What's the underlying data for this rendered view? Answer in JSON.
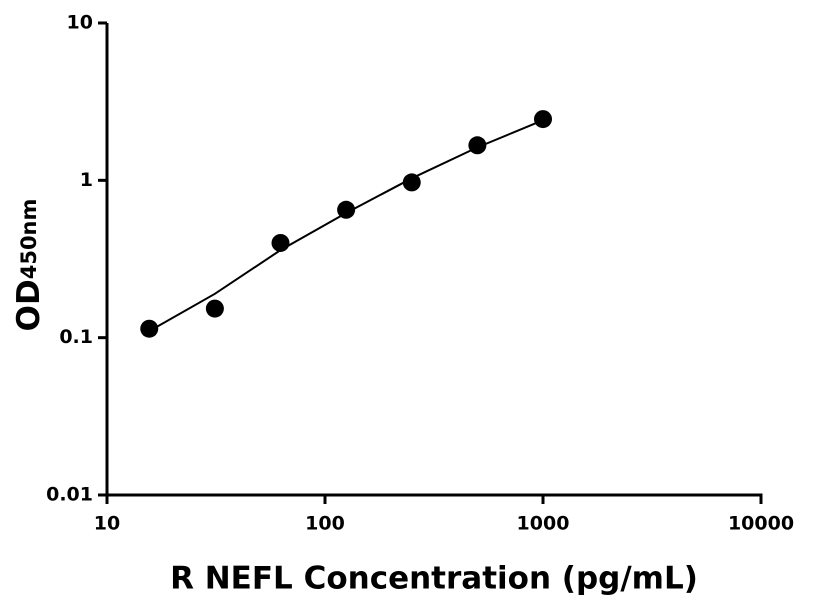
{
  "chart_data": {
    "type": "scatter",
    "xlabel": "R NEFL Concentration (pg/mL)",
    "ylabel": "OD",
    "ylabel_sub": "450nm",
    "xscale": "log",
    "yscale": "log",
    "xlim": [
      10,
      10000
    ],
    "ylim": [
      0.01,
      10
    ],
    "xticks": [
      10,
      100,
      1000,
      10000
    ],
    "yticks": [
      0.01,
      0.1,
      1,
      10
    ],
    "points": {
      "color": "#000000",
      "x": [
        15.625,
        31.25,
        62.5,
        125,
        250,
        500,
        1000
      ],
      "y": [
        0.114,
        0.153,
        0.4,
        0.65,
        0.97,
        1.67,
        2.45
      ]
    },
    "fit": {
      "color": "#000000",
      "x": [
        15.625,
        31.25,
        62.5,
        125,
        250,
        500,
        1000
      ],
      "y": [
        0.11,
        0.19,
        0.36,
        0.62,
        1.03,
        1.62,
        2.41
      ]
    }
  }
}
